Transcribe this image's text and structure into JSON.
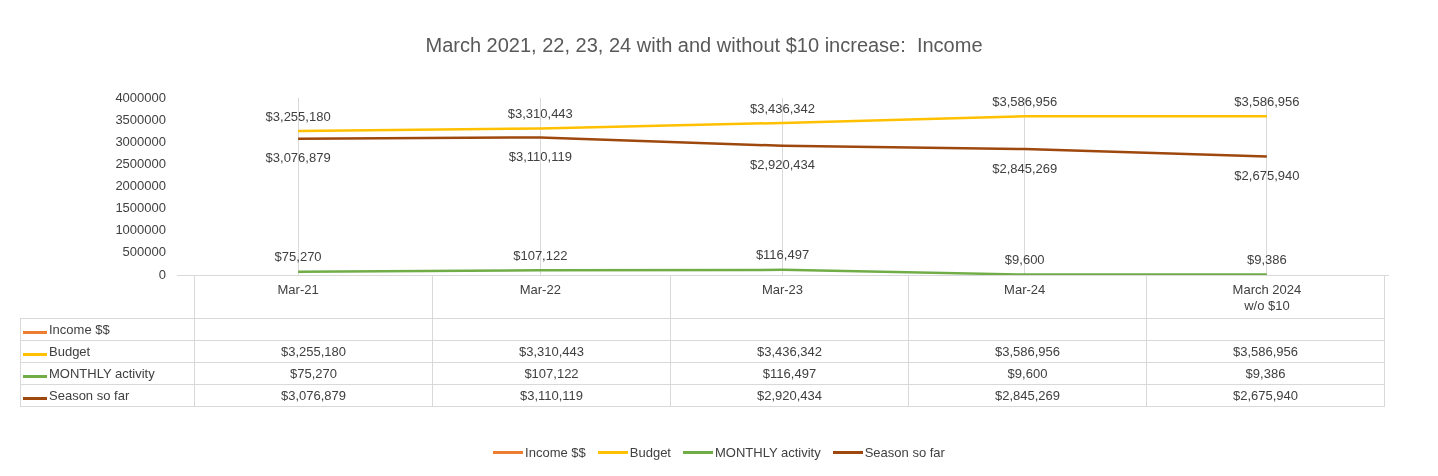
{
  "chart_data": {
    "type": "line",
    "title": "March 2021, 22, 23, 24 with and without $10 increase:  Income",
    "categories": [
      "Mar-21",
      "Mar-22",
      "Mar-23",
      "Mar-24",
      "March 2024 w/o $10"
    ],
    "ylim": [
      0,
      4000000
    ],
    "yticks": [
      0,
      500000,
      1000000,
      1500000,
      2000000,
      2500000,
      3000000,
      3500000,
      4000000
    ],
    "grid": "x",
    "legend": "bottom",
    "marker": "none",
    "line_style": "solid",
    "series": [
      {
        "name": "Income $$",
        "color": "#ed7d31",
        "values": [
          null,
          null,
          null,
          null,
          null
        ]
      },
      {
        "name": "Budget",
        "color": "#ffc000",
        "values": [
          3255180,
          3310443,
          3436342,
          3586956,
          3586956
        ],
        "value_labels": [
          "$3,255,180",
          "$3,310,443",
          "$3,436,342",
          "$3,586,956",
          "$3,586,956"
        ]
      },
      {
        "name": "MONTHLY activity",
        "color": "#70ad47",
        "values": [
          75270,
          107122,
          116497,
          9600,
          9386
        ],
        "value_labels": [
          "$75,270",
          "$107,122",
          "$116,497",
          "$9,600",
          "$9,386"
        ]
      },
      {
        "name": "Season so far",
        "color": "#9e480e",
        "values": [
          3076879,
          3110119,
          2920434,
          2845269,
          2675940
        ],
        "value_labels": [
          "$3,076,879",
          "$3,110,119",
          "$2,920,434",
          "$2,845,269",
          "$2,675,940"
        ]
      }
    ]
  }
}
